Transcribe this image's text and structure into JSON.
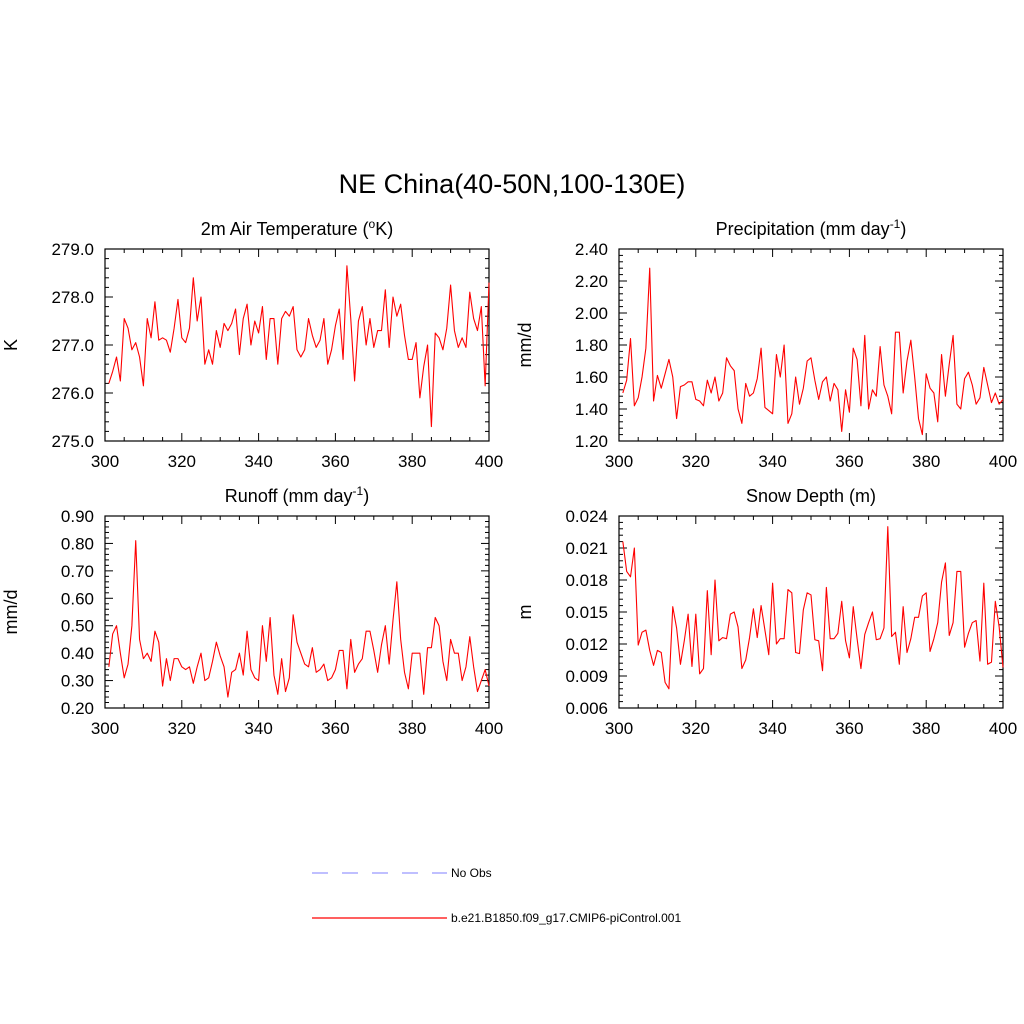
{
  "main_title": "NE China(40-50N,100-130E)",
  "colors": {
    "model": "#ff0000",
    "obs": "#9999ff",
    "axis": "#000000"
  },
  "legend": [
    {
      "label": "No Obs",
      "style": "dashed",
      "color": "#9999ff"
    },
    {
      "label": "b.e21.B1850.f09_g17.CMIP6-piControl.001",
      "style": "solid",
      "color": "#ff0000"
    }
  ],
  "chart_data": [
    {
      "type": "line",
      "title": "2m Air Temperature (",
      "title_sup": "o",
      "title_end": "K)",
      "ylabel": "K",
      "xlabel": "",
      "xlim": [
        300,
        400
      ],
      "ylim": [
        275.0,
        279.0
      ],
      "xticks": [
        300,
        320,
        340,
        360,
        380,
        400
      ],
      "yticks": [
        "275.0",
        "276.0",
        "277.0",
        "278.0",
        "279.0"
      ],
      "series": [
        {
          "name": "b.e21.B1850.f09_g17.CMIP6-piControl.001",
          "x_start": 301,
          "x_step": 1,
          "values": [
            276.2,
            276.45,
            276.75,
            276.25,
            277.55,
            277.35,
            276.9,
            277.05,
            276.75,
            276.15,
            277.55,
            277.15,
            277.9,
            277.1,
            277.15,
            277.1,
            276.85,
            277.35,
            277.95,
            277.15,
            277.05,
            277.35,
            278.4,
            277.5,
            278.0,
            276.6,
            276.9,
            276.6,
            277.3,
            276.95,
            277.45,
            277.3,
            277.45,
            277.75,
            276.8,
            277.55,
            277.85,
            277.0,
            277.5,
            277.25,
            277.8,
            276.7,
            277.55,
            277.55,
            276.6,
            277.55,
            277.7,
            277.6,
            277.8,
            276.9,
            276.75,
            276.9,
            277.55,
            277.2,
            276.95,
            277.1,
            277.55,
            276.6,
            276.9,
            277.4,
            277.75,
            276.7,
            278.65,
            277.55,
            276.25,
            277.5,
            277.8,
            277.0,
            277.55,
            276.95,
            277.3,
            277.3,
            278.15,
            276.95,
            278.0,
            277.6,
            277.85,
            277.2,
            276.7,
            276.7,
            277.05,
            275.9,
            276.55,
            277.0,
            275.3,
            277.25,
            277.15,
            276.9,
            277.35,
            278.25,
            277.3,
            276.95,
            277.15,
            276.95,
            278.1,
            277.55,
            277.3,
            277.8,
            276.15,
            278.3
          ]
        }
      ]
    },
    {
      "type": "line",
      "title": "Precipitation (mm day",
      "title_sup": "-1",
      "title_end": ")",
      "ylabel": "mm/d",
      "xlabel": "",
      "xlim": [
        300,
        400
      ],
      "ylim": [
        1.2,
        2.4
      ],
      "xticks": [
        300,
        320,
        340,
        360,
        380,
        400
      ],
      "yticks": [
        "1.20",
        "1.40",
        "1.60",
        "1.80",
        "2.00",
        "2.20",
        "2.40"
      ],
      "series": [
        {
          "name": "b.e21.B1850.f09_g17.CMIP6-piControl.001",
          "x_start": 301,
          "x_step": 1,
          "values": [
            1.5,
            1.58,
            1.84,
            1.42,
            1.47,
            1.6,
            1.78,
            2.28,
            1.45,
            1.61,
            1.53,
            1.62,
            1.71,
            1.6,
            1.34,
            1.54,
            1.55,
            1.57,
            1.57,
            1.46,
            1.45,
            1.42,
            1.58,
            1.5,
            1.6,
            1.45,
            1.5,
            1.72,
            1.67,
            1.64,
            1.4,
            1.31,
            1.56,
            1.48,
            1.5,
            1.59,
            1.78,
            1.41,
            1.39,
            1.37,
            1.74,
            1.6,
            1.8,
            1.31,
            1.37,
            1.6,
            1.43,
            1.53,
            1.7,
            1.72,
            1.58,
            1.46,
            1.57,
            1.6,
            1.45,
            1.56,
            1.52,
            1.26,
            1.52,
            1.38,
            1.78,
            1.71,
            1.42,
            1.86,
            1.4,
            1.52,
            1.48,
            1.79,
            1.55,
            1.48,
            1.37,
            1.88,
            1.88,
            1.5,
            1.7,
            1.83,
            1.6,
            1.34,
            1.24,
            1.62,
            1.53,
            1.5,
            1.32,
            1.74,
            1.48,
            1.68,
            1.86,
            1.43,
            1.4,
            1.59,
            1.63,
            1.55,
            1.43,
            1.47,
            1.66,
            1.55,
            1.44,
            1.5,
            1.43,
            1.46
          ]
        }
      ]
    },
    {
      "type": "line",
      "title": "Runoff (mm day",
      "title_sup": "-1",
      "title_end": ")",
      "ylabel": "mm/d",
      "xlabel": "",
      "xlim": [
        300,
        400
      ],
      "ylim": [
        0.2,
        0.9
      ],
      "xticks": [
        300,
        320,
        340,
        360,
        380,
        400
      ],
      "yticks": [
        "0.20",
        "0.30",
        "0.40",
        "0.50",
        "0.60",
        "0.70",
        "0.80",
        "0.90"
      ],
      "series": [
        {
          "name": "b.e21.B1850.f09_g17.CMIP6-piControl.001",
          "x_start": 301,
          "x_step": 1,
          "values": [
            0.35,
            0.47,
            0.5,
            0.4,
            0.31,
            0.36,
            0.5,
            0.81,
            0.45,
            0.38,
            0.4,
            0.37,
            0.48,
            0.44,
            0.28,
            0.38,
            0.3,
            0.38,
            0.38,
            0.35,
            0.34,
            0.35,
            0.29,
            0.35,
            0.4,
            0.3,
            0.31,
            0.37,
            0.44,
            0.39,
            0.35,
            0.24,
            0.33,
            0.34,
            0.4,
            0.32,
            0.48,
            0.34,
            0.31,
            0.3,
            0.5,
            0.37,
            0.53,
            0.32,
            0.25,
            0.38,
            0.26,
            0.31,
            0.54,
            0.44,
            0.4,
            0.36,
            0.35,
            0.42,
            0.33,
            0.34,
            0.36,
            0.3,
            0.31,
            0.34,
            0.41,
            0.41,
            0.27,
            0.45,
            0.33,
            0.36,
            0.38,
            0.48,
            0.48,
            0.41,
            0.33,
            0.43,
            0.5,
            0.36,
            0.52,
            0.66,
            0.45,
            0.33,
            0.27,
            0.4,
            0.4,
            0.4,
            0.25,
            0.42,
            0.42,
            0.53,
            0.5,
            0.37,
            0.3,
            0.45,
            0.4,
            0.4,
            0.3,
            0.35,
            0.46,
            0.35,
            0.26,
            0.3,
            0.34,
            0.28
          ]
        }
      ]
    },
    {
      "type": "line",
      "title": "Snow Depth (m)",
      "title_sup": "",
      "title_end": "",
      "ylabel": "m",
      "xlabel": "",
      "xlim": [
        300,
        400
      ],
      "ylim": [
        0.006,
        0.024
      ],
      "xticks": [
        300,
        320,
        340,
        360,
        380,
        400
      ],
      "yticks": [
        "0.006",
        "0.009",
        "0.012",
        "0.015",
        "0.018",
        "0.021",
        "0.024"
      ],
      "series": [
        {
          "name": "b.e21.B1850.f09_g17.CMIP6-piControl.001",
          "x_start": 301,
          "x_step": 1,
          "values": [
            0.0216,
            0.0188,
            0.0183,
            0.021,
            0.0119,
            0.0131,
            0.0133,
            0.0114,
            0.01,
            0.0114,
            0.0112,
            0.0084,
            0.0078,
            0.0155,
            0.0135,
            0.0101,
            0.0123,
            0.0148,
            0.0099,
            0.0148,
            0.0092,
            0.0097,
            0.017,
            0.011,
            0.018,
            0.0123,
            0.0126,
            0.0125,
            0.0148,
            0.015,
            0.0136,
            0.0097,
            0.0105,
            0.0126,
            0.0153,
            0.0126,
            0.0156,
            0.0133,
            0.011,
            0.0177,
            0.012,
            0.0125,
            0.0125,
            0.0171,
            0.0168,
            0.0112,
            0.0111,
            0.0152,
            0.0168,
            0.0166,
            0.0124,
            0.0123,
            0.0095,
            0.0173,
            0.0125,
            0.0125,
            0.013,
            0.016,
            0.0123,
            0.0107,
            0.0155,
            0.0125,
            0.0097,
            0.0129,
            0.014,
            0.015,
            0.0124,
            0.0125,
            0.0135,
            0.023,
            0.0127,
            0.0131,
            0.0101,
            0.0155,
            0.0112,
            0.0125,
            0.0145,
            0.0145,
            0.0165,
            0.0168,
            0.0113,
            0.0125,
            0.014,
            0.0178,
            0.0196,
            0.0128,
            0.014,
            0.0188,
            0.0188,
            0.0117,
            0.013,
            0.014,
            0.0142,
            0.0104,
            0.0177,
            0.0101,
            0.0103,
            0.016,
            0.0136,
            0.0098
          ]
        }
      ]
    }
  ]
}
